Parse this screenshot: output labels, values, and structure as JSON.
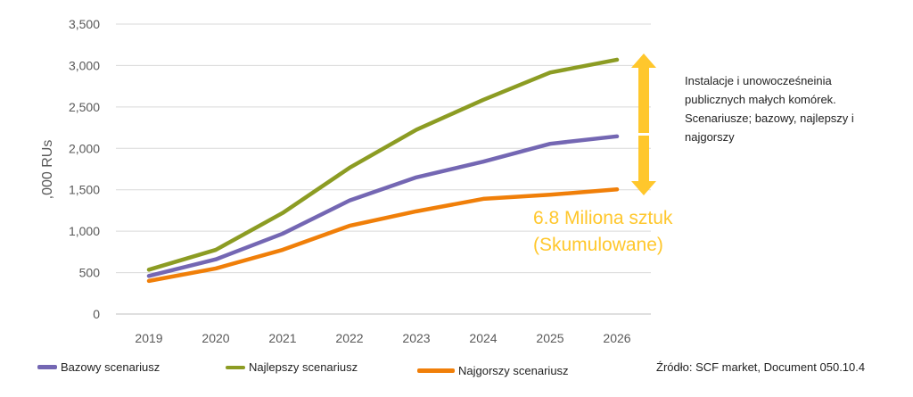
{
  "chart_data": {
    "type": "line",
    "categories": [
      "2019",
      "2020",
      "2021",
      "2022",
      "2023",
      "2024",
      "2025",
      "2026"
    ],
    "ylabel": ",000 RUs",
    "ylim": [
      0,
      3500
    ],
    "yticks": [
      0,
      500,
      1000,
      1500,
      2000,
      2500,
      3000,
      3500
    ],
    "ytick_labels": [
      "0",
      "500",
      "1,000",
      "1,500",
      "2,000",
      "2,500",
      "3,000",
      "3,500"
    ],
    "grid": true,
    "legend_position": "bottom",
    "series": [
      {
        "name": "Bazowy scenariusz",
        "color": "#7467b3",
        "values": [
          460,
          660,
          970,
          1370,
          1650,
          1840,
          2055,
          2145
        ]
      },
      {
        "name": "Najlepszy scenariusz",
        "color": "#8c9c23",
        "values": [
          535,
          775,
          1220,
          1765,
          2225,
          2585,
          2915,
          3070
        ]
      },
      {
        "name": "Najgorszy scenariusz",
        "color": "#f07f09",
        "values": [
          400,
          550,
          775,
          1065,
          1240,
          1390,
          1440,
          1505
        ]
      }
    ],
    "annotations": {
      "note": "Instalacje i unowocześneinia publicznych małych komórek. Scenariusze; bazowy, najlepszy i najgorszy",
      "callout_line1": "6.8 Miliona sztuk",
      "callout_line2": "(Skumulowane)",
      "arrow_color": "#ffc72c"
    },
    "source": "Źródło: SCF market, Document 050.10.4"
  }
}
